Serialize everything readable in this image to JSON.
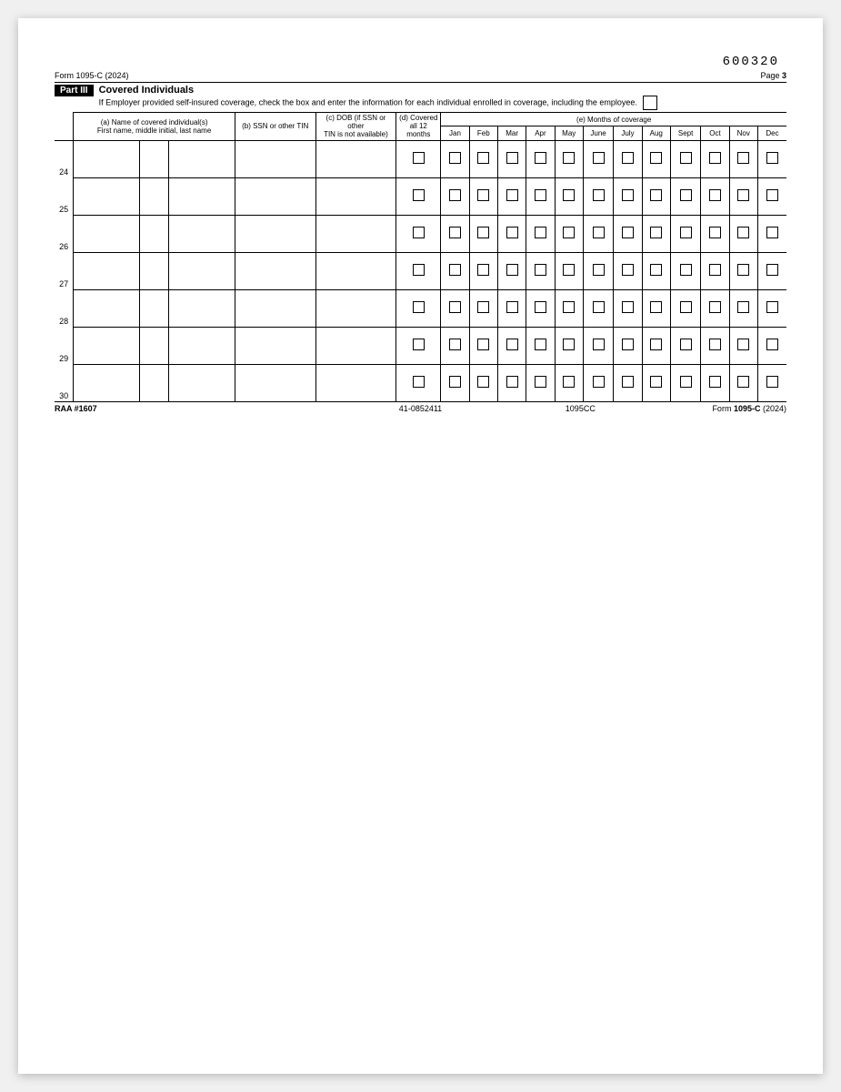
{
  "meta": {
    "top_number": "600320",
    "form_header_left": "Form 1095-C (2024)",
    "page_label_prefix": "Page ",
    "page_number": "3",
    "part_label": "Part III",
    "part_title": "Covered Individuals",
    "part_desc": "If Employer provided self-insured coverage, check the box and enter the information for each individual enrolled in coverage, including the employee.",
    "footer_left": "RAA #1607",
    "footer_mid": "41-0852411",
    "footer_mid2": "1095CC",
    "footer_right_prefix": "Form ",
    "footer_right_form": "1095-C",
    "footer_right_year": " (2024)"
  },
  "headers": {
    "col_a_line1": "(a) Name of covered individual(s)",
    "col_a_line2": "First name, middle initial, last name",
    "col_b": "(b) SSN or other TIN",
    "col_c_line1": "(c) DOB (if SSN or other",
    "col_c_line2": "TIN is not available)",
    "col_d_line1": "(d) Covered",
    "col_d_line2": "all 12 months",
    "col_e": "(e) Months of coverage",
    "months": [
      "Jan",
      "Feb",
      "Mar",
      "Apr",
      "May",
      "June",
      "July",
      "Aug",
      "Sept",
      "Oct",
      "Nov",
      "Dec"
    ]
  },
  "rows": [
    {
      "num": "24"
    },
    {
      "num": "25"
    },
    {
      "num": "26"
    },
    {
      "num": "27"
    },
    {
      "num": "28"
    },
    {
      "num": "29"
    },
    {
      "num": "30"
    }
  ],
  "layout": {
    "col_widths": {
      "rownum": 20,
      "first": 70,
      "mi": 30,
      "last": 70,
      "ssn": 85,
      "dob": 85,
      "all12": 45,
      "month": 30
    },
    "colors": {
      "text": "#000000",
      "bg": "#ffffff",
      "border": "#000000"
    }
  }
}
